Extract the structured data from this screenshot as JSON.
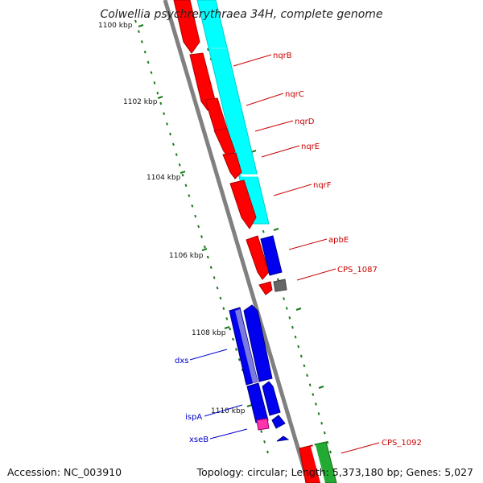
{
  "title": "Colwellia psychrerythraea 34H, complete genome",
  "footer": {
    "accession": "Accession: NC_003910",
    "topology": "Topology: circular; Length: 5,373,180 bp; Genes: 5,027"
  },
  "ticks": [
    "1100 kbp",
    "1102 kbp",
    "1104 kbp",
    "1106 kbp",
    "1108 kbp",
    "1110 kbp"
  ],
  "genes": [
    {
      "label": "nqrB",
      "color": "#cc0000"
    },
    {
      "label": "nqrC",
      "color": "#cc0000"
    },
    {
      "label": "nqrD",
      "color": "#cc0000"
    },
    {
      "label": "nqrE",
      "color": "#cc0000"
    },
    {
      "label": "nqrF",
      "color": "#cc0000"
    },
    {
      "label": "apbE",
      "color": "#cc0000"
    },
    {
      "label": "CPS_1087",
      "color": "#cc0000"
    },
    {
      "label": "dxs",
      "color": "#0000cc"
    },
    {
      "label": "ispA",
      "color": "#0000cc"
    },
    {
      "label": "xseB",
      "color": "#0000cc"
    },
    {
      "label": "CPS_1092",
      "color": "#cc0000"
    }
  ],
  "colors": {
    "backbone": "#808080",
    "forward_cds": "#ff0000",
    "reverse_cds": "#0000ee",
    "operon": "#00ffff",
    "rna": "#228b22",
    "tick": "#1a7a1a"
  }
}
